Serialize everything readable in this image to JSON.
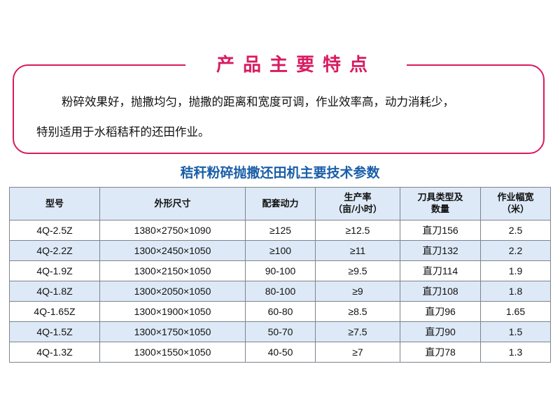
{
  "features": {
    "title": "产品主要特点",
    "line1": "粉碎效果好，抛撒均匀，抛撒的距离和宽度可调，作业效率高，动力消耗少，",
    "line2": "特别适用于水稻秸秆的还田作业。"
  },
  "table_title": "秸秆粉碎抛撒还田机主要技术参数",
  "colors": {
    "accent_pink": "#d81b60",
    "title_blue": "#1a5ea8",
    "row_tint": "#dde9f6"
  },
  "table": {
    "headers": [
      [
        "型号"
      ],
      [
        "外形尺寸"
      ],
      [
        "配套动力"
      ],
      [
        "生产率",
        "（亩/小时）"
      ],
      [
        "刀具类型及",
        "数量"
      ],
      [
        "作业幅宽",
        "（米）"
      ]
    ],
    "rows": [
      [
        "4Q-2.5Z",
        "1380×2750×1090",
        "≥125",
        "≥12.5",
        "直刀156",
        "2.5"
      ],
      [
        "4Q-2.2Z",
        "1300×2450×1050",
        "≥100",
        "≥11",
        "直刀132",
        "2.2"
      ],
      [
        "4Q-1.9Z",
        "1300×2150×1050",
        "90-100",
        "≥9.5",
        "直刀114",
        "1.9"
      ],
      [
        "4Q-1.8Z",
        "1300×2050×1050",
        "80-100",
        "≥9",
        "直刀108",
        "1.8"
      ],
      [
        "4Q-1.65Z",
        "1300×1900×1050",
        "60-80",
        "≥8.5",
        "直刀96",
        "1.65"
      ],
      [
        "4Q-1.5Z",
        "1300×1750×1050",
        "50-70",
        "≥7.5",
        "直刀90",
        "1.5"
      ],
      [
        "4Q-1.3Z",
        "1300×1550×1050",
        "40-50",
        "≥7",
        "直刀78",
        "1.3"
      ]
    ]
  }
}
